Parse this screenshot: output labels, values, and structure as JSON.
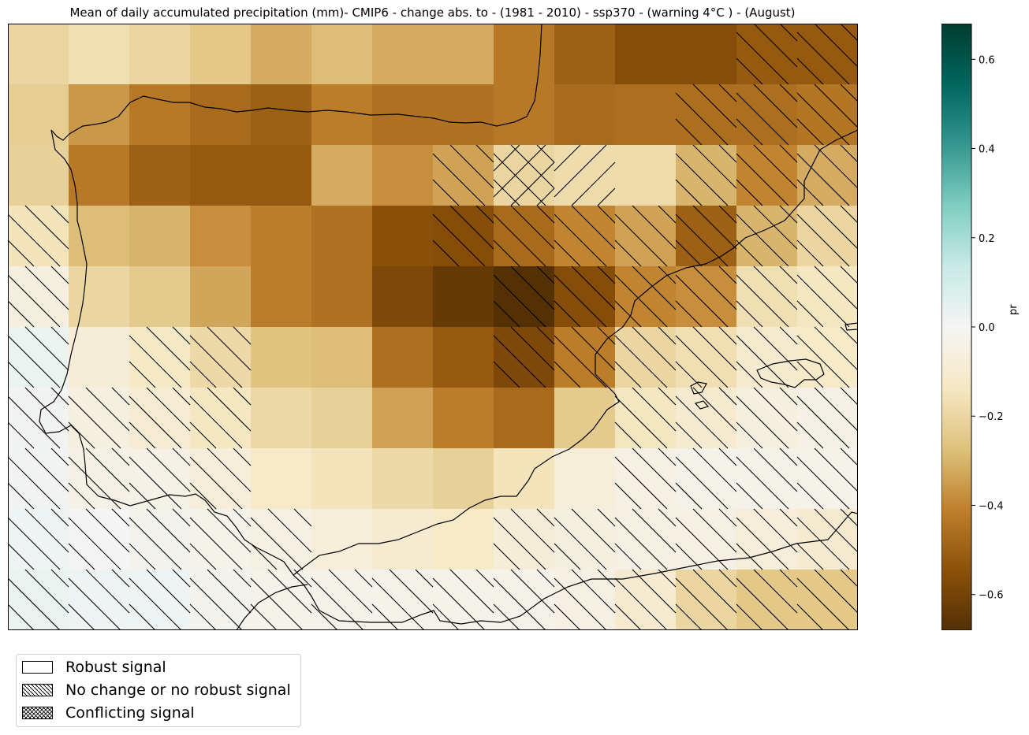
{
  "map": {
    "title": "Mean of daily accumulated precipitation (mm)- CMIP6 - change abs. to - (1981 - 2010)  - ssp370  - (warning 4°C ) - (August)",
    "variable": "pr",
    "region": "Iberian Peninsula",
    "grid_values": [
      [
        -0.2,
        -0.17,
        -0.2,
        -0.25,
        -0.32,
        -0.28,
        -0.32,
        -0.32,
        -0.43,
        -0.5,
        -0.56,
        -0.56,
        -0.52,
        -0.52
      ],
      [
        -0.23,
        -0.36,
        -0.43,
        -0.47,
        -0.5,
        -0.42,
        -0.45,
        -0.45,
        -0.43,
        -0.47,
        -0.46,
        -0.46,
        -0.46,
        -0.44
      ],
      [
        -0.22,
        -0.43,
        -0.5,
        -0.52,
        -0.52,
        -0.32,
        -0.38,
        -0.34,
        -0.2,
        -0.18,
        -0.18,
        -0.3,
        -0.4,
        -0.32
      ],
      [
        -0.15,
        -0.28,
        -0.3,
        -0.38,
        -0.42,
        -0.45,
        -0.55,
        -0.56,
        -0.47,
        -0.4,
        -0.34,
        -0.5,
        -0.3,
        -0.2
      ],
      [
        -0.06,
        -0.2,
        -0.24,
        -0.33,
        -0.42,
        -0.45,
        -0.58,
        -0.64,
        -0.68,
        -0.56,
        -0.4,
        -0.38,
        -0.17,
        -0.14
      ],
      [
        0.03,
        -0.08,
        -0.13,
        -0.19,
        -0.27,
        -0.28,
        -0.46,
        -0.52,
        -0.58,
        -0.42,
        -0.2,
        -0.17,
        -0.1,
        -0.12
      ],
      [
        0.01,
        -0.06,
        -0.09,
        -0.14,
        -0.19,
        -0.22,
        -0.34,
        -0.42,
        -0.47,
        -0.24,
        -0.14,
        -0.1,
        -0.06,
        -0.04
      ],
      [
        0.01,
        -0.04,
        -0.04,
        -0.07,
        -0.12,
        -0.15,
        -0.19,
        -0.22,
        -0.15,
        -0.07,
        -0.05,
        -0.03,
        -0.03,
        -0.03
      ],
      [
        0.02,
        0.0,
        -0.02,
        -0.03,
        -0.05,
        -0.07,
        -0.1,
        -0.12,
        -0.08,
        -0.06,
        -0.05,
        -0.05,
        -0.07,
        -0.1
      ],
      [
        0.03,
        0.02,
        0.02,
        -0.02,
        -0.03,
        -0.03,
        -0.03,
        -0.03,
        -0.03,
        -0.05,
        -0.1,
        -0.2,
        -0.25,
        -0.25
      ]
    ],
    "hatch_cells_no_signal": [
      [
        0,
        12
      ],
      [
        0,
        13
      ],
      [
        1,
        11
      ],
      [
        1,
        12
      ],
      [
        1,
        13
      ],
      [
        2,
        7
      ],
      [
        2,
        8
      ],
      [
        2,
        11
      ],
      [
        2,
        12
      ],
      [
        2,
        13
      ],
      [
        3,
        0
      ],
      [
        3,
        7
      ],
      [
        3,
        8
      ],
      [
        3,
        9
      ],
      [
        3,
        10
      ],
      [
        3,
        11
      ],
      [
        3,
        12
      ],
      [
        3,
        13
      ],
      [
        4,
        0
      ],
      [
        4,
        8
      ],
      [
        4,
        9
      ],
      [
        4,
        10
      ],
      [
        4,
        11
      ],
      [
        4,
        12
      ],
      [
        4,
        13
      ],
      [
        5,
        0
      ],
      [
        5,
        2
      ],
      [
        5,
        3
      ],
      [
        5,
        8
      ],
      [
        5,
        9
      ],
      [
        5,
        10
      ],
      [
        5,
        11
      ],
      [
        5,
        12
      ],
      [
        5,
        13
      ],
      [
        6,
        0
      ],
      [
        6,
        1
      ],
      [
        6,
        2
      ],
      [
        6,
        3
      ],
      [
        6,
        10
      ],
      [
        6,
        11
      ],
      [
        6,
        12
      ],
      [
        6,
        13
      ],
      [
        7,
        0
      ],
      [
        7,
        1
      ],
      [
        7,
        2
      ],
      [
        7,
        3
      ],
      [
        7,
        10
      ],
      [
        7,
        11
      ],
      [
        7,
        12
      ],
      [
        7,
        13
      ],
      [
        8,
        0
      ],
      [
        8,
        1
      ],
      [
        8,
        2
      ],
      [
        8,
        3
      ],
      [
        8,
        4
      ],
      [
        8,
        8
      ],
      [
        8,
        9
      ],
      [
        8,
        10
      ],
      [
        8,
        11
      ],
      [
        8,
        12
      ],
      [
        8,
        13
      ],
      [
        9,
        0
      ],
      [
        9,
        1
      ],
      [
        9,
        2
      ],
      [
        9,
        3
      ],
      [
        9,
        4
      ],
      [
        9,
        5
      ],
      [
        9,
        6
      ],
      [
        9,
        7
      ],
      [
        9,
        8
      ],
      [
        9,
        9
      ],
      [
        9,
        10
      ],
      [
        9,
        11
      ],
      [
        9,
        12
      ],
      [
        9,
        13
      ]
    ],
    "hatch_cells_conflicting": [
      [
        2,
        8
      ],
      [
        2,
        9
      ]
    ]
  },
  "colorbar": {
    "label": "pr",
    "min": -0.68,
    "max": 0.68,
    "ticks": [
      {
        "value": 0.6,
        "label": "0.6"
      },
      {
        "value": 0.4,
        "label": "0.4"
      },
      {
        "value": 0.2,
        "label": "0.2"
      },
      {
        "value": 0.0,
        "label": "0.0"
      },
      {
        "value": -0.2,
        "label": "−0.2"
      },
      {
        "value": -0.4,
        "label": "−0.4"
      },
      {
        "value": -0.6,
        "label": "−0.6"
      }
    ],
    "colormap": "BrBG",
    "colors": [
      "#543005",
      "#8c510a",
      "#bf812d",
      "#dfc27d",
      "#f6e8c3",
      "#f5f5f5",
      "#c7eae5",
      "#80cdc1",
      "#35978f",
      "#01665e",
      "#003c30"
    ]
  },
  "legend": {
    "items": [
      {
        "label": "Robust signal",
        "pattern": "none"
      },
      {
        "label": "No change or no robust signal",
        "pattern": "diagonal"
      },
      {
        "label": "Conflicting signal",
        "pattern": "cross"
      }
    ]
  }
}
